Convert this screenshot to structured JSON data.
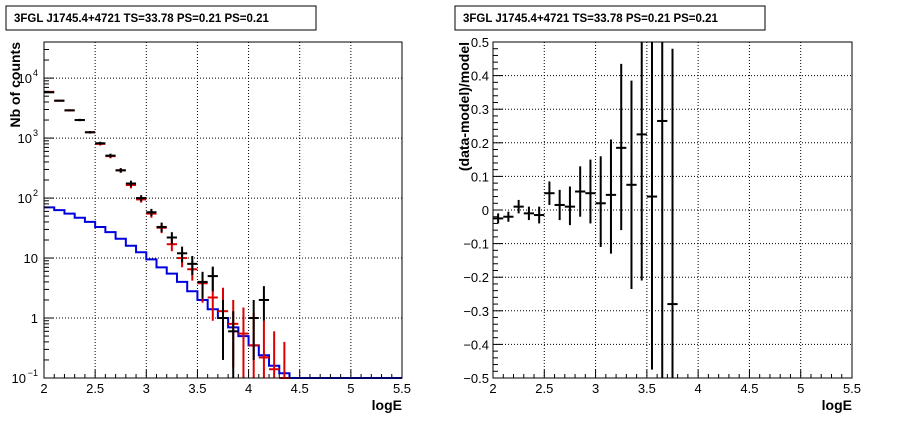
{
  "chart_data": [
    {
      "type": "step",
      "title": "3FGL J1745.4+4721 TS=33.78 PS=0.21 PS=0.21",
      "xlabel": "logE",
      "ylabel": "Nb of counts",
      "xlim": [
        2,
        5.5
      ],
      "ylim": [
        0.1,
        40000
      ],
      "yscale": "log",
      "grid": true,
      "xticks": [
        "2",
        "2.5",
        "3",
        "3.5",
        "4",
        "4.5",
        "5",
        "5.5"
      ],
      "yticks": [
        {
          "value": 0.1,
          "label": "10",
          "exp": "−1"
        },
        {
          "value": 1,
          "label": "1",
          "exp": ""
        },
        {
          "value": 10,
          "label": "10",
          "exp": ""
        },
        {
          "value": 100,
          "label": "10",
          "exp": "2"
        },
        {
          "value": 1000,
          "label": "10",
          "exp": "3"
        },
        {
          "value": 10000,
          "label": "10",
          "exp": "4"
        }
      ],
      "bin_width": 0.1,
      "colors": {
        "data": "#000000",
        "model": "#dd0000",
        "background": "#0000dd"
      },
      "series": [
        {
          "role": "data",
          "points": [
            {
              "x": 2.05,
              "y": 5800,
              "lo": 5650,
              "hi": 5950
            },
            {
              "x": 2.15,
              "y": 4200,
              "lo": 4080,
              "hi": 4330
            },
            {
              "x": 2.25,
              "y": 2900,
              "lo": 2800,
              "hi": 3010
            },
            {
              "x": 2.35,
              "y": 2000,
              "lo": 1920,
              "hi": 2090
            },
            {
              "x": 2.45,
              "y": 1250,
              "lo": 1190,
              "hi": 1310
            },
            {
              "x": 2.55,
              "y": 820,
              "lo": 770,
              "hi": 870
            },
            {
              "x": 2.65,
              "y": 510,
              "lo": 470,
              "hi": 550
            },
            {
              "x": 2.75,
              "y": 290,
              "lo": 265,
              "hi": 315
            },
            {
              "x": 2.85,
              "y": 175,
              "lo": 155,
              "hi": 195
            },
            {
              "x": 2.95,
              "y": 100,
              "lo": 88,
              "hi": 112
            },
            {
              "x": 3.05,
              "y": 58,
              "lo": 50,
              "hi": 66
            },
            {
              "x": 3.15,
              "y": 33,
              "lo": 27,
              "hi": 39
            },
            {
              "x": 3.25,
              "y": 22,
              "lo": 17,
              "hi": 27
            },
            {
              "x": 3.35,
              "y": 12,
              "lo": 8.5,
              "hi": 15.5
            },
            {
              "x": 3.45,
              "y": 8,
              "lo": 5.2,
              "hi": 10.8
            },
            {
              "x": 3.55,
              "y": 4,
              "lo": 2.1,
              "hi": 5.9
            },
            {
              "x": 3.65,
              "y": 5,
              "lo": 2.8,
              "hi": 7.2
            },
            {
              "x": 3.75,
              "y": 1,
              "lo": 0.2,
              "hi": 2.0
            },
            {
              "x": 3.85,
              "y": 0.6,
              "lo": 0.1,
              "hi": 1.3
            },
            {
              "x": 4.05,
              "y": 1,
              "lo": 0.2,
              "hi": 2.0
            },
            {
              "x": 4.15,
              "y": 2,
              "lo": 0.9,
              "hi": 3.4
            }
          ]
        },
        {
          "role": "model",
          "points": [
            {
              "x": 2.05,
              "y": 5900,
              "lo": 5760,
              "hi": 6050
            },
            {
              "x": 2.15,
              "y": 4200,
              "lo": 4080,
              "hi": 4330
            },
            {
              "x": 2.25,
              "y": 2900,
              "lo": 2800,
              "hi": 3010
            },
            {
              "x": 2.35,
              "y": 2000,
              "lo": 1920,
              "hi": 2090
            },
            {
              "x": 2.45,
              "y": 1250,
              "lo": 1190,
              "hi": 1310
            },
            {
              "x": 2.55,
              "y": 800,
              "lo": 750,
              "hi": 850
            },
            {
              "x": 2.65,
              "y": 500,
              "lo": 460,
              "hi": 540
            },
            {
              "x": 2.75,
              "y": 290,
              "lo": 265,
              "hi": 315
            },
            {
              "x": 2.85,
              "y": 165,
              "lo": 145,
              "hi": 185
            },
            {
              "x": 2.95,
              "y": 95,
              "lo": 84,
              "hi": 107
            },
            {
              "x": 3.05,
              "y": 55,
              "lo": 47,
              "hi": 63
            },
            {
              "x": 3.15,
              "y": 32,
              "lo": 26,
              "hi": 38
            },
            {
              "x": 3.25,
              "y": 17,
              "lo": 13,
              "hi": 21
            },
            {
              "x": 3.35,
              "y": 10,
              "lo": 7,
              "hi": 13
            },
            {
              "x": 3.45,
              "y": 6.5,
              "lo": 4.2,
              "hi": 9
            },
            {
              "x": 3.55,
              "y": 3.8,
              "lo": 1.8,
              "hi": 5.8
            },
            {
              "x": 3.65,
              "y": 2.2,
              "lo": 0.9,
              "hi": 7.0
            },
            {
              "x": 3.75,
              "y": 1.3,
              "lo": 0.25,
              "hi": 3.2
            },
            {
              "x": 3.85,
              "y": 0.8,
              "lo": 0.15,
              "hi": 2.0
            },
            {
              "x": 3.95,
              "y": 0.55,
              "lo": 0.1,
              "hi": 1.5
            },
            {
              "x": 4.05,
              "y": 0.35,
              "lo": 0.1,
              "hi": 1.2
            },
            {
              "x": 4.15,
              "y": 0.22,
              "lo": 0.1,
              "hi": 0.9
            },
            {
              "x": 4.25,
              "y": 0.14,
              "lo": 0.1,
              "hi": 0.6
            },
            {
              "x": 4.35,
              "y": 0.1,
              "lo": 0.1,
              "hi": 0.4
            }
          ]
        },
        {
          "role": "background",
          "bins": [
            {
              "x0": 2.0,
              "y": 70
            },
            {
              "x0": 2.1,
              "y": 63
            },
            {
              "x0": 2.2,
              "y": 55
            },
            {
              "x0": 2.3,
              "y": 47
            },
            {
              "x0": 2.4,
              "y": 40
            },
            {
              "x0": 2.5,
              "y": 33
            },
            {
              "x0": 2.6,
              "y": 27
            },
            {
              "x0": 2.7,
              "y": 21
            },
            {
              "x0": 2.8,
              "y": 16
            },
            {
              "x0": 2.9,
              "y": 12.5
            },
            {
              "x0": 3.0,
              "y": 9.5
            },
            {
              "x0": 3.1,
              "y": 7
            },
            {
              "x0": 3.2,
              "y": 5.5
            },
            {
              "x0": 3.3,
              "y": 4
            },
            {
              "x0": 3.4,
              "y": 2.8
            },
            {
              "x0": 3.5,
              "y": 2
            },
            {
              "x0": 3.6,
              "y": 1.4
            },
            {
              "x0": 3.7,
              "y": 1
            },
            {
              "x0": 3.8,
              "y": 0.7
            },
            {
              "x0": 3.9,
              "y": 0.5
            },
            {
              "x0": 4.0,
              "y": 0.35
            },
            {
              "x0": 4.1,
              "y": 0.24
            },
            {
              "x0": 4.2,
              "y": 0.16
            },
            {
              "x0": 4.3,
              "y": 0.12
            },
            {
              "x0": 4.4,
              "y": 0.1
            },
            {
              "x0": 4.5,
              "y": 0.1
            },
            {
              "x0": 4.6,
              "y": 0.1
            },
            {
              "x0": 4.7,
              "y": 0.1
            },
            {
              "x0": 4.8,
              "y": 0.1
            },
            {
              "x0": 4.9,
              "y": 0.1
            },
            {
              "x0": 5.0,
              "y": 0.1
            },
            {
              "x0": 5.1,
              "y": 0.1
            },
            {
              "x0": 5.2,
              "y": 0.1
            },
            {
              "x0": 5.3,
              "y": 0.1
            },
            {
              "x0": 5.4,
              "y": 0.1
            }
          ]
        }
      ]
    },
    {
      "type": "scatter",
      "title": "3FGL J1745.4+4721 TS=33.78 PS=0.21 PS=0.21",
      "xlabel": "logE",
      "ylabel": "(data-model)/model",
      "xlim": [
        2,
        5.5
      ],
      "ylim": [
        -0.5,
        0.5
      ],
      "grid": true,
      "xticks": [
        "2",
        "2.5",
        "3",
        "3.5",
        "4",
        "4.5",
        "5",
        "5.5"
      ],
      "yticks": [
        "−0.5",
        "−0.4",
        "−0.3",
        "−0.2",
        "−0.1",
        "0",
        "0.1",
        "0.2",
        "0.3",
        "0.4",
        "0.5"
      ],
      "bin_width": 0.1,
      "series": [
        {
          "role": "residual",
          "points": [
            {
              "x": 2.05,
              "y": -0.025,
              "lo": -0.04,
              "hi": -0.01
            },
            {
              "x": 2.15,
              "y": -0.02,
              "lo": -0.035,
              "hi": -0.005
            },
            {
              "x": 2.25,
              "y": 0.01,
              "lo": -0.01,
              "hi": 0.03
            },
            {
              "x": 2.35,
              "y": -0.01,
              "lo": -0.03,
              "hi": 0.01
            },
            {
              "x": 2.45,
              "y": -0.015,
              "lo": -0.04,
              "hi": 0.01
            },
            {
              "x": 2.55,
              "y": 0.05,
              "lo": 0.015,
              "hi": 0.085
            },
            {
              "x": 2.65,
              "y": 0.015,
              "lo": -0.03,
              "hi": 0.06
            },
            {
              "x": 2.75,
              "y": 0.01,
              "lo": -0.045,
              "hi": 0.07
            },
            {
              "x": 2.85,
              "y": 0.055,
              "lo": -0.02,
              "hi": 0.13
            },
            {
              "x": 2.95,
              "y": 0.05,
              "lo": -0.04,
              "hi": 0.15
            },
            {
              "x": 3.05,
              "y": 0.02,
              "lo": -0.11,
              "hi": 0.16
            },
            {
              "x": 3.15,
              "y": 0.045,
              "lo": -0.13,
              "hi": 0.21
            },
            {
              "x": 3.25,
              "y": 0.185,
              "lo": -0.06,
              "hi": 0.435
            },
            {
              "x": 3.35,
              "y": 0.075,
              "lo": -0.235,
              "hi": 0.385
            },
            {
              "x": 3.45,
              "y": 0.225,
              "lo": -0.21,
              "hi": 0.5
            },
            {
              "x": 3.55,
              "y": 0.04,
              "lo": -0.475,
              "hi": 0.5
            },
            {
              "x": 3.65,
              "y": 0.265,
              "lo": -0.5,
              "hi": 0.5
            },
            {
              "x": 3.75,
              "y": -0.28,
              "lo": -0.5,
              "hi": 0.48
            }
          ]
        }
      ]
    }
  ]
}
